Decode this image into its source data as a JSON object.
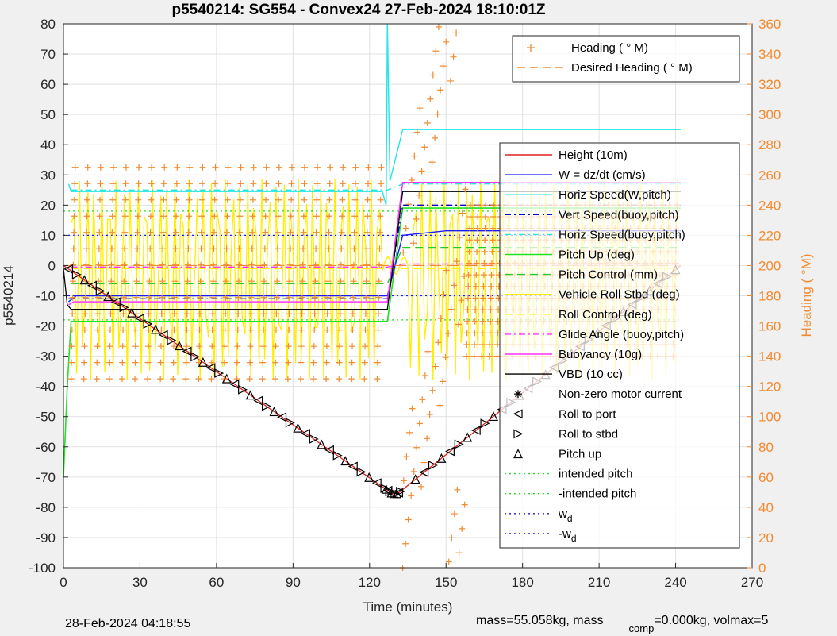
{
  "figure": {
    "title": "p5540214: SG554 - Convex24 27-Feb-2024 18:10:01Z",
    "footer_left": "28-Feb-2024 04:18:55",
    "footer_right": "mass=55.058kg, mass",
    "footer_sub": "comp",
    "footer_right2": "=0.000kg, volmax=5",
    "colors": {
      "background": "#f0f0f0",
      "axes_bg": "#ffffff",
      "grid": "#e1e1e1",
      "heading": "#f28a30"
    }
  },
  "chart_data": {
    "type": "line",
    "title": "p5540214: SG554 - Convex24 27-Feb-2024 18:10:01Z",
    "xlabel": "Time (minutes)",
    "ylabel": "p5540214",
    "y2label": "Heading (  °M)",
    "xlim": [
      0,
      270
    ],
    "ylim": [
      -100,
      80
    ],
    "y2lim": [
      0,
      360
    ],
    "xticks": [
      0,
      30,
      60,
      90,
      120,
      150,
      180,
      210,
      240,
      270
    ],
    "yticks": [
      -100,
      -90,
      -80,
      -70,
      -60,
      -50,
      -40,
      -30,
      -20,
      -10,
      0,
      10,
      20,
      30,
      40,
      50,
      60,
      70,
      80
    ],
    "y2ticks": [
      0,
      20,
      40,
      60,
      80,
      100,
      120,
      140,
      160,
      180,
      200,
      220,
      240,
      260,
      280,
      300,
      320,
      340,
      360
    ],
    "grid": true,
    "legend_top": {
      "placement": "top-right",
      "entries": [
        {
          "label": "Heading (  ° M)",
          "color": "#f28a30",
          "style": "plus"
        },
        {
          "label": "Desired Heading (   ° M)",
          "color": "#f28a30",
          "style": "dash"
        }
      ]
    },
    "legend_main": {
      "placement": "right",
      "entries": [
        {
          "label": "Height (10m)",
          "color": "#e02020",
          "style": "solid"
        },
        {
          "label": "W = dz/dt (cm/s)",
          "color": "#1a1aff",
          "style": "solid"
        },
        {
          "label": "Horiz Speed(W,pitch)",
          "color": "#22e5e5",
          "style": "solid"
        },
        {
          "label": "Vert Speed(buoy,pitch)",
          "color": "#0000cc",
          "style": "dashdot"
        },
        {
          "label": "Horiz Speed(buoy,pitch)",
          "color": "#22e5e5",
          "style": "dashdot"
        },
        {
          "label": "Pitch Up (deg)",
          "color": "#22e022",
          "style": "solid"
        },
        {
          "label": "Pitch Control (mm)",
          "color": "#22cc22",
          "style": "dash"
        },
        {
          "label": "Vehicle Roll Stbd (deg)",
          "color": "#ffee00",
          "style": "solid"
        },
        {
          "label": "Roll Control (deg)",
          "color": "#ffee00",
          "style": "dash"
        },
        {
          "label": "Glide Angle (buoy,pitch)",
          "color": "#ff33ff",
          "style": "dashdot"
        },
        {
          "label": "Buoyancy (10g)",
          "color": "#ff33ff",
          "style": "solid"
        },
        {
          "label": "VBD (10 cc)",
          "color": "#000000",
          "style": "solid"
        },
        {
          "label": "Non-zero motor current",
          "color": "#000000",
          "style": "star"
        },
        {
          "label": "Roll to port",
          "color": "#000000",
          "style": "tri-left"
        },
        {
          "label": "Roll to stbd",
          "color": "#000000",
          "style": "tri-right"
        },
        {
          "label": "Pitch up",
          "color": "#000000",
          "style": "tri-up"
        },
        {
          "label": "intended pitch",
          "color": "#22e022",
          "style": "dot"
        },
        {
          "label": "-intended pitch",
          "color": "#22e022",
          "style": "dot"
        },
        {
          "label": "w",
          "sub": "d",
          "color": "#1a1aff",
          "style": "dot"
        },
        {
          "label": "-w",
          "sub": "d",
          "color": "#1a1aff",
          "style": "dot"
        }
      ]
    },
    "series": {
      "height": {
        "name": "Height (10m)",
        "x": [
          0,
          129,
          131,
          242
        ],
        "y": [
          0,
          -75.5,
          -75.5,
          0
        ]
      },
      "vbd": {
        "name": "VBD (10 cc)",
        "x": [
          0,
          1.5,
          3,
          127,
          133,
          242
        ],
        "y": [
          -1,
          -13,
          -14.5,
          -14.5,
          24.5,
          24.5
        ]
      },
      "buoyancy": {
        "name": "Buoyancy (10g)",
        "x": [
          2,
          4,
          127,
          133,
          242
        ],
        "y": [
          -13,
          -12,
          -12,
          27.5,
          27.5
        ]
      },
      "horiz_speed_w": {
        "name": "Horiz Speed(W,pitch)",
        "x": [
          2,
          3,
          125,
          126.5,
          127,
          128,
          133,
          242
        ],
        "y": [
          27,
          24.5,
          24.5,
          20,
          80,
          28,
          45,
          45
        ]
      },
      "w": {
        "name": "W = dz/dt (cm/s)",
        "x": [
          2,
          5,
          127,
          133,
          150,
          242
        ],
        "y": [
          -12,
          -10,
          -10,
          10,
          11.5,
          11.5
        ]
      },
      "vert_speed_buoy": {
        "name": "Vert Speed(buoy,pitch)",
        "x": [
          2,
          127,
          133,
          242
        ],
        "y": [
          -11,
          -11,
          20,
          20
        ]
      },
      "horiz_speed_buoy": {
        "name": "Horiz Speed(buoy,pitch)",
        "x": [
          3,
          127,
          133,
          242
        ],
        "y": [
          25,
          25,
          27,
          27
        ]
      },
      "pitch_up": {
        "name": "Pitch Up (deg)",
        "x": [
          0,
          1.5,
          3,
          127,
          133,
          242
        ],
        "y": [
          -70,
          -40,
          -18.5,
          -18.5,
          19,
          19
        ]
      },
      "pitch_control": {
        "name": "Pitch Control (mm)",
        "x": [
          3,
          127,
          133,
          242
        ],
        "y": [
          -6,
          -6,
          6,
          6
        ]
      },
      "glide_angle": {
        "name": "Glide Angle (buoy,pitch)",
        "x": [
          3,
          127,
          133,
          242
        ],
        "y": [
          -0.5,
          -0.5,
          0.5,
          0.5
        ]
      },
      "intended_pitch": {
        "name": "intended pitch",
        "x": [
          0,
          242
        ],
        "y": [
          18,
          18
        ]
      },
      "neg_intended_pitch": {
        "name": "-intended pitch",
        "x": [
          0,
          242
        ],
        "y": [
          -18,
          -18
        ]
      },
      "wd": {
        "name": "w",
        "x": [
          0,
          242
        ],
        "y": [
          10,
          10
        ]
      },
      "neg_wd": {
        "name": "-w",
        "x": [
          0,
          242
        ],
        "y": [
          -10,
          -10
        ]
      },
      "roll_envelope": {
        "name": "Vehicle Roll Stbd (deg)",
        "y_max": 30,
        "y_min": -40
      }
    },
    "heading_pattern": {
      "dive": {
        "x_start": 3,
        "x_end": 125,
        "period_min": 5,
        "y2_low": 125,
        "y2_high": 265
      },
      "climb": {
        "x_start": 158,
        "x_end": 241,
        "period_min": 3,
        "y2_low": 140,
        "y2_high": 240
      },
      "scatter_band": {
        "x_start": 133,
        "x_end": 158,
        "y2_low": 0,
        "y2_high": 360
      }
    },
    "desired_heading": {
      "x": [
        0,
        242
      ],
      "y2": [
        200,
        200
      ]
    }
  }
}
